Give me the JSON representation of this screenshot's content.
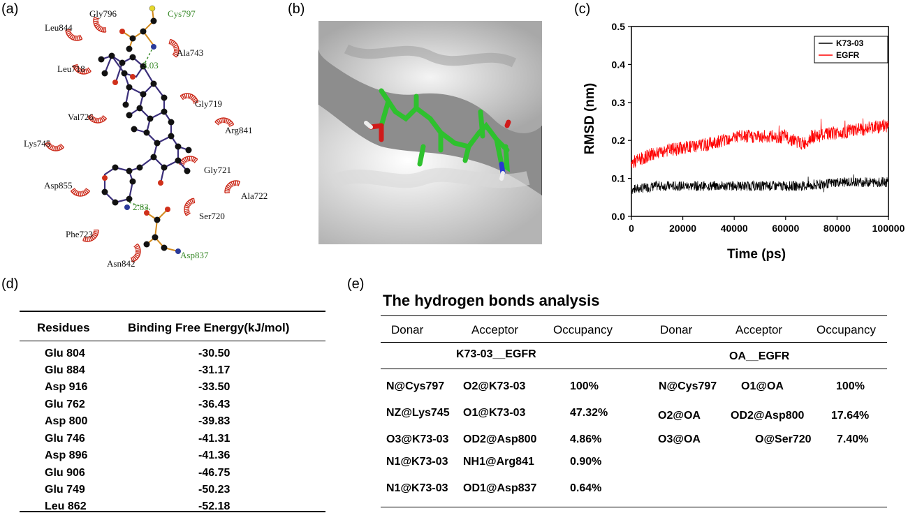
{
  "panel_labels": {
    "a": "(a)",
    "b": "(b)",
    "c": "(c)",
    "d": "(d)",
    "e": "(e)"
  },
  "interaction_diagram": {
    "hydrophobic_residues": [
      "Gly796",
      "Leu844",
      "Ala743",
      "Leu718",
      "Gly719",
      "Val726",
      "Arg841",
      "Lys745",
      "Gly721",
      "Asp855",
      "Ala722",
      "Ser720",
      "Phe723",
      "Asn842"
    ],
    "hbond_residues": [
      "Cys797",
      "Asp837"
    ],
    "distances": [
      "3.03",
      "2.83"
    ],
    "colors": {
      "residue_arc": "#cc2a1a",
      "hbond_label": "#3a8a2a",
      "ligand_bond": "#3b2f7a",
      "residue_bond": "#d28a1c",
      "oxygen": "#d0301a",
      "nitrogen": "#2a3a9a",
      "sulfur": "#e6d82a"
    }
  },
  "surface_render": {
    "colors": {
      "surface": "#c8c8c8",
      "ligand": "#2ec12e",
      "oxygen": "#d01a1a",
      "nitrogen": "#2a3ad0"
    }
  },
  "chart_data": {
    "type": "line",
    "xlabel": "Time (ps)",
    "ylabel": "RMSD (nm)",
    "xlim": [
      0,
      100000
    ],
    "ylim": [
      0,
      0.5
    ],
    "xticks": [
      "0",
      "20000",
      "40000",
      "60000",
      "80000",
      "100000"
    ],
    "yticks": [
      "0.0",
      "0.1",
      "0.2",
      "0.3",
      "0.4",
      "0.5"
    ],
    "legend_position": "top-right",
    "series": [
      {
        "name": "K73-03",
        "color": "#000000",
        "x": [
          0,
          10000,
          20000,
          30000,
          40000,
          50000,
          60000,
          70000,
          80000,
          90000,
          100000
        ],
        "values": [
          0.07,
          0.08,
          0.08,
          0.08,
          0.08,
          0.08,
          0.08,
          0.08,
          0.09,
          0.09,
          0.09
        ]
      },
      {
        "name": "EGFR",
        "color": "#ff0000",
        "x": [
          0,
          10000,
          20000,
          30000,
          40000,
          50000,
          60000,
          67000,
          70000,
          80000,
          90000,
          100000
        ],
        "values": [
          0.14,
          0.17,
          0.18,
          0.19,
          0.21,
          0.21,
          0.21,
          0.19,
          0.21,
          0.22,
          0.23,
          0.24
        ]
      }
    ]
  },
  "table_d": {
    "headers": [
      "Residues",
      "Binding Free Energy(kJ/mol)"
    ],
    "rows": [
      [
        "Glu 804",
        "-30.50"
      ],
      [
        "Glu 884",
        "-31.17"
      ],
      [
        "Asp 916",
        "-33.50"
      ],
      [
        "Glu 762",
        "-36.43"
      ],
      [
        "Asp 800",
        "-39.83"
      ],
      [
        "Glu 746",
        "-41.31"
      ],
      [
        "Asp 896",
        "-41.36"
      ],
      [
        "Glu 906",
        "-46.75"
      ],
      [
        "Glu 749",
        "-50.23"
      ],
      [
        "Leu 862",
        "-52.18"
      ]
    ]
  },
  "table_e": {
    "title": "The hydrogen bonds analysis",
    "headers": [
      "Donar",
      "Acceptor",
      "Occupancy",
      "Donar",
      "Acceptor",
      "Occupancy"
    ],
    "groups": [
      "K73-03__EGFR",
      "OA__EGFR"
    ],
    "left_rows": [
      [
        "N@Cys797",
        "O2@K73-03",
        "100%"
      ],
      [
        "NZ@Lys745",
        "O1@K73-03",
        "47.32%"
      ],
      [
        "O3@K73-03",
        "OD2@Asp800",
        "4.86%"
      ],
      [
        "N1@K73-03",
        "NH1@Arg841",
        "0.90%"
      ],
      [
        "N1@K73-03",
        "OD1@Asp837",
        "0.64%"
      ]
    ],
    "right_rows": [
      [
        "N@Cys797",
        "O1@OA",
        "100%"
      ],
      [
        "O2@OA",
        "OD2@Asp800",
        "17.64%"
      ],
      [
        "O3@OA",
        "O@Ser720",
        "7.40%"
      ]
    ]
  }
}
